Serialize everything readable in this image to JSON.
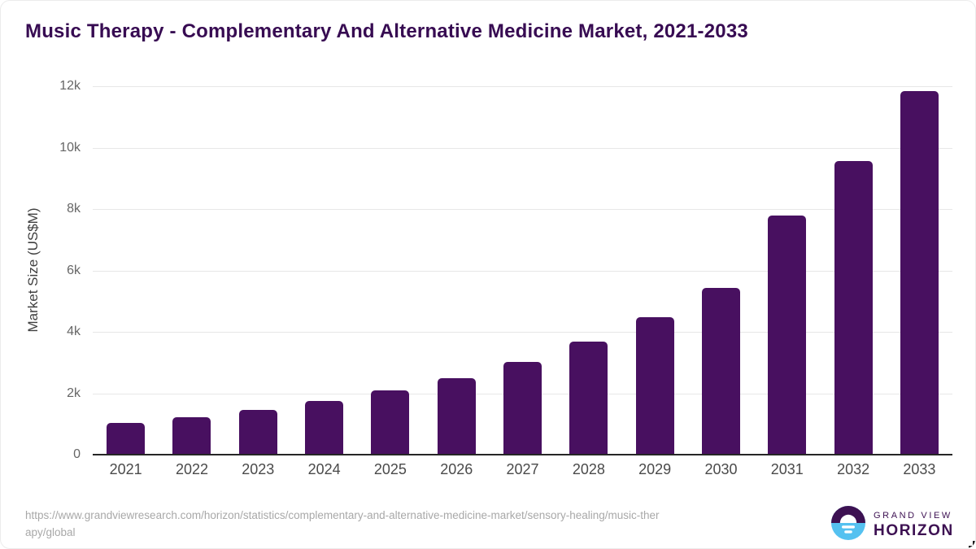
{
  "chart_data": {
    "type": "bar",
    "title": "Music Therapy - Complementary And Alternative Medicine Market, 2021-2033",
    "categories": [
      "2021",
      "2022",
      "2023",
      "2024",
      "2025",
      "2026",
      "2027",
      "2028",
      "2029",
      "2030",
      "2031",
      "2032",
      "2033"
    ],
    "values": [
      1030,
      1210,
      1450,
      1740,
      2080,
      2490,
      3030,
      3690,
      4480,
      5430,
      7790,
      9570,
      11840
    ],
    "xlabel": "",
    "ylabel": "Market Size (US$M)",
    "ylim": [
      0,
      12000
    ],
    "yticks": [
      {
        "value": 0,
        "label": "0"
      },
      {
        "value": 2000,
        "label": "2k"
      },
      {
        "value": 4000,
        "label": "4k"
      },
      {
        "value": 6000,
        "label": "6k"
      },
      {
        "value": 8000,
        "label": "8k"
      },
      {
        "value": 10000,
        "label": "10k"
      },
      {
        "value": 12000,
        "label": "12k"
      }
    ],
    "grid": true,
    "legend": "none",
    "bar_color": "#481060"
  },
  "footer": {
    "source_url_lines": [
      "https://www.grandviewresearch.com/horizon/statistics/complementary-and-alternative-medicine-market/sensory-healing/music-ther",
      "apy/global"
    ],
    "logo": {
      "line1": "GRAND VIEW",
      "line2": "HORIZON"
    }
  },
  "colors": {
    "title": "#370b52",
    "bar": "#481060",
    "gridline": "#e7e7e7",
    "axis": "#262626",
    "logo_purple": "#3d1152",
    "logo_blue": "#55c1f0"
  }
}
